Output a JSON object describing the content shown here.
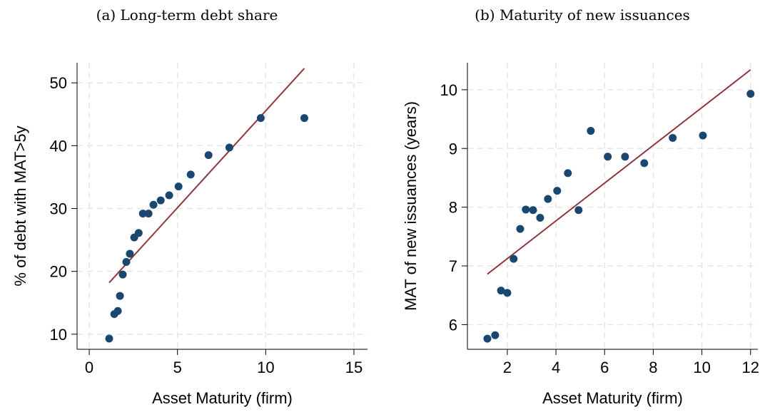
{
  "chart_data": [
    {
      "type": "scatter",
      "title": "(a) Long-term debt share",
      "xlabel": "Asset Maturity (firm)",
      "ylabel": "% of debt with MAT>5y",
      "x": [
        1.13,
        1.42,
        1.62,
        1.74,
        1.9,
        2.1,
        2.3,
        2.55,
        2.8,
        3.04,
        3.36,
        3.64,
        4.05,
        4.53,
        5.06,
        5.75,
        6.76,
        7.94,
        9.72,
        12.19
      ],
      "values": [
        9.3,
        13.2,
        13.7,
        16.1,
        19.5,
        21.5,
        22.8,
        25.4,
        26.1,
        29.2,
        29.2,
        30.6,
        31.3,
        32.1,
        33.5,
        35.4,
        38.5,
        39.7,
        44.4,
        44.4
      ],
      "color": "#1a476f",
      "fit": {
        "x": [
          1.13,
          12.19
        ],
        "values": [
          18.2,
          52.3
        ],
        "color": "#90353b"
      },
      "xlim": [
        -0.69,
        15.77
      ],
      "ylim": [
        7.6,
        53.2
      ],
      "xticks": [
        0,
        5,
        10,
        15
      ],
      "yticks": [
        10,
        20,
        30,
        40,
        50
      ],
      "grid": true
    },
    {
      "type": "scatter",
      "title": "(b) Maturity of new issuances",
      "xlabel": "Asset Maturity (firm)",
      "ylabel": "MAT of new issuances (years)",
      "x": [
        1.18,
        1.5,
        1.74,
        2.0,
        2.26,
        2.53,
        2.76,
        3.06,
        3.35,
        3.67,
        4.05,
        4.49,
        4.93,
        5.43,
        6.13,
        6.84,
        7.63,
        8.8,
        10.04,
        12.0
      ],
      "values": [
        5.76,
        5.82,
        6.58,
        6.54,
        7.12,
        7.63,
        7.96,
        7.95,
        7.82,
        8.14,
        8.28,
        8.58,
        7.95,
        9.3,
        8.86,
        8.86,
        8.75,
        9.18,
        9.22,
        9.93
      ],
      "color": "#1a476f",
      "fit": {
        "x": [
          1.18,
          12.0
        ],
        "values": [
          6.86,
          10.34
        ],
        "color": "#90353b"
      },
      "xlim": [
        0.36,
        12.3
      ],
      "ylim": [
        5.58,
        10.46
      ],
      "xticks": [
        2,
        4,
        6,
        8,
        10,
        12
      ],
      "yticks": [
        6,
        7,
        8,
        9,
        10
      ],
      "grid": true
    }
  ]
}
